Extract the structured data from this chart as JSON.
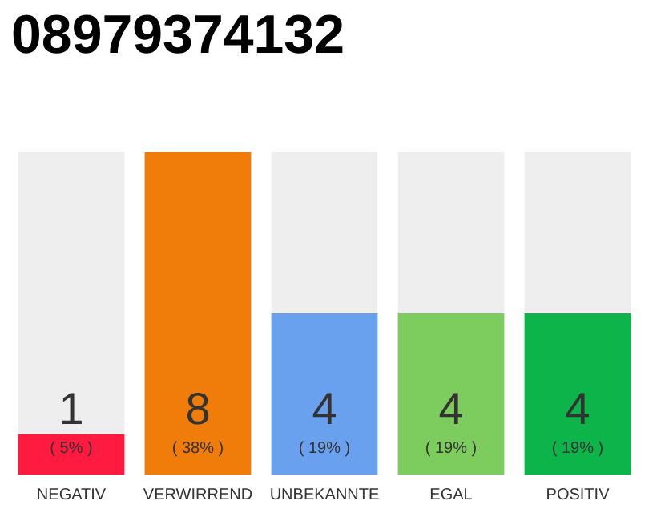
{
  "chart_data": {
    "type": "bar",
    "title": "08979374132",
    "categories": [
      "NEGATIV",
      "VERWIRREND",
      "UNBEKANNTE",
      "EGAL",
      "POSITIV"
    ],
    "values": [
      1,
      8,
      4,
      4,
      4
    ],
    "colors": [
      "#ff1a40",
      "#f07d0a",
      "#6aa1ee",
      "#7dcc5e",
      "#0cb44a"
    ],
    "data_labels": true,
    "annotations": [
      "( 5% )",
      "( 38% )",
      "( 19% )",
      "( 19% )",
      "( 19% )"
    ],
    "grid": false
  }
}
